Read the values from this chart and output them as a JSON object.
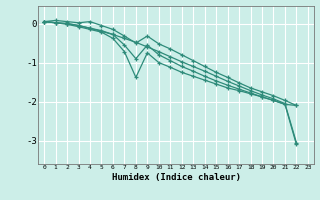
{
  "xlabel": "Humidex (Indice chaleur)",
  "background_color": "#cceee8",
  "grid_color": "#ffffff",
  "line_color": "#2e8b7a",
  "xlim": [
    -0.5,
    23.5
  ],
  "ylim": [
    -3.6,
    0.45
  ],
  "yticks": [
    0,
    -1,
    -2,
    -3
  ],
  "xticks": [
    0,
    1,
    2,
    3,
    4,
    5,
    6,
    7,
    8,
    9,
    10,
    11,
    12,
    13,
    14,
    15,
    16,
    17,
    18,
    19,
    20,
    21,
    22,
    23
  ],
  "series": [
    {
      "x": [
        0,
        1,
        2,
        3,
        4,
        5,
        6,
        7,
        8,
        9,
        10,
        11,
        12,
        13,
        14,
        15,
        16,
        17,
        18,
        19,
        20,
        21,
        22
      ],
      "y": [
        0.05,
        0.02,
        0.0,
        -0.05,
        -0.12,
        -0.2,
        -0.28,
        -0.38,
        -0.48,
        -0.6,
        -0.72,
        -0.85,
        -0.98,
        -1.1,
        -1.22,
        -1.35,
        -1.48,
        -1.6,
        -1.72,
        -1.83,
        -1.93,
        -2.05,
        -3.05
      ]
    },
    {
      "x": [
        0,
        1,
        2,
        3,
        4,
        5,
        6,
        7,
        8,
        9,
        10,
        11,
        12,
        13,
        14,
        15,
        16,
        17,
        18,
        19,
        20,
        21,
        22
      ],
      "y": [
        0.05,
        0.02,
        0.0,
        -0.05,
        -0.12,
        -0.18,
        -0.28,
        -0.55,
        -0.9,
        -0.55,
        -0.8,
        -0.95,
        -1.1,
        -1.22,
        -1.35,
        -1.47,
        -1.58,
        -1.68,
        -1.78,
        -1.88,
        -1.97,
        -2.07,
        -2.1
      ]
    },
    {
      "x": [
        0,
        1,
        2,
        3,
        4,
        5,
        6,
        7,
        8,
        9,
        10,
        11,
        12,
        13,
        14,
        15,
        16,
        17,
        18,
        19,
        20,
        21,
        22
      ],
      "y": [
        0.05,
        0.08,
        0.05,
        0.02,
        0.05,
        -0.05,
        -0.15,
        -0.32,
        -0.5,
        -0.32,
        -0.52,
        -0.65,
        -0.8,
        -0.95,
        -1.1,
        -1.25,
        -1.38,
        -1.52,
        -1.65,
        -1.75,
        -1.85,
        -1.97,
        -2.1
      ]
    },
    {
      "x": [
        0,
        1,
        2,
        3,
        4,
        5,
        6,
        7,
        8,
        9,
        10,
        11,
        12,
        13,
        14,
        15,
        16,
        17,
        18,
        19,
        20,
        21,
        22
      ],
      "y": [
        0.05,
        0.02,
        -0.02,
        -0.08,
        -0.15,
        -0.22,
        -0.38,
        -0.72,
        -1.38,
        -0.75,
        -1.0,
        -1.12,
        -1.25,
        -1.35,
        -1.45,
        -1.55,
        -1.65,
        -1.72,
        -1.8,
        -1.88,
        -1.97,
        -2.07,
        -3.1
      ]
    }
  ]
}
